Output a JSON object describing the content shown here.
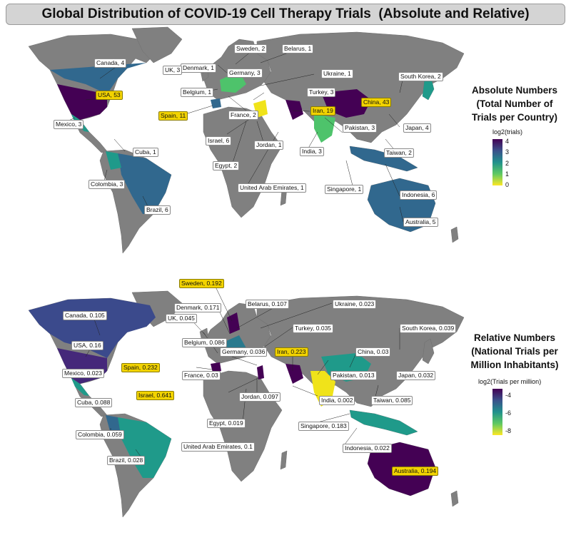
{
  "title": "Global Distribution of COVID-19 Cell Therapy Trials  (Absolute and Relative)",
  "colors": {
    "land": "#808080",
    "ocean": "#ffffff",
    "border": "#6e6e6e",
    "highlight": "#f2d300",
    "scale": [
      "#f0e31a",
      "#4ec36b",
      "#1f9a8a",
      "#31688e",
      "#440154"
    ]
  },
  "panels": [
    {
      "id": "absolute",
      "legend": {
        "title_lines": [
          "Absolute Numbers",
          "(Total Number of",
          "Trials per Country)"
        ],
        "subtitle": "log2(trials)",
        "ticks": [
          "4",
          "3",
          "2",
          "1",
          "0"
        ]
      },
      "labels": [
        {
          "text": "Sweden, 2",
          "hl": false
        },
        {
          "text": "Belarus, 1",
          "hl": false
        },
        {
          "text": "Canada, 4",
          "hl": false
        },
        {
          "text": "Denmark, 1",
          "hl": false
        },
        {
          "text": "UK, 3",
          "hl": false
        },
        {
          "text": "Germany, 3",
          "hl": false
        },
        {
          "text": "Ukraine, 1",
          "hl": false
        },
        {
          "text": "South Korea, 2",
          "hl": false
        },
        {
          "text": "USA, 53",
          "hl": true
        },
        {
          "text": "Belgium, 1",
          "hl": false
        },
        {
          "text": "Turkey, 3",
          "hl": false
        },
        {
          "text": "China, 43",
          "hl": true
        },
        {
          "text": "Spain, 11",
          "hl": true
        },
        {
          "text": "France, 2",
          "hl": false
        },
        {
          "text": "Iran, 19",
          "hl": true
        },
        {
          "text": "Mexico, 3",
          "hl": false
        },
        {
          "text": "Israel, 6",
          "hl": false
        },
        {
          "text": "Pakistan, 3",
          "hl": false
        },
        {
          "text": "Japan, 4",
          "hl": false
        },
        {
          "text": "Cuba, 1",
          "hl": false
        },
        {
          "text": "Jordan, 1",
          "hl": false
        },
        {
          "text": "India, 3",
          "hl": false
        },
        {
          "text": "Taiwan, 2",
          "hl": false
        },
        {
          "text": "Egypt, 2",
          "hl": false
        },
        {
          "text": "Colombia, 3",
          "hl": false
        },
        {
          "text": "United Arab Emirates, 1",
          "hl": false
        },
        {
          "text": "Singapore, 1",
          "hl": false
        },
        {
          "text": "Indonesia, 6",
          "hl": false
        },
        {
          "text": "Brazil, 6",
          "hl": false
        },
        {
          "text": "Australia, 5",
          "hl": false
        }
      ]
    },
    {
      "id": "relative",
      "legend": {
        "title_lines": [
          "Relative Numbers",
          "(National Trials per",
          "Million Inhabitants)"
        ],
        "subtitle": "log2(Trials per million)",
        "ticks": [
          "-4",
          "-6",
          "-8"
        ]
      },
      "labels": [
        {
          "text": "Sweden, 0.192",
          "hl": true
        },
        {
          "text": "Belarus, 0.107",
          "hl": false
        },
        {
          "text": "Denmark, 0.171",
          "hl": false
        },
        {
          "text": "Ukraine, 0.023",
          "hl": false
        },
        {
          "text": "Canada, 0.105",
          "hl": false
        },
        {
          "text": "UK, 0.045",
          "hl": false
        },
        {
          "text": "Turkey, 0.035",
          "hl": false
        },
        {
          "text": "South Korea, 0.039",
          "hl": false
        },
        {
          "text": "Belgium, 0.086",
          "hl": false
        },
        {
          "text": "USA, 0.16",
          "hl": false
        },
        {
          "text": "Germany, 0.036",
          "hl": false
        },
        {
          "text": "Iran, 0.223",
          "hl": true
        },
        {
          "text": "China, 0.03",
          "hl": false
        },
        {
          "text": "Spain, 0.232",
          "hl": true
        },
        {
          "text": "Pakistan, 0.013",
          "hl": false
        },
        {
          "text": "Mexico, 0.023",
          "hl": false
        },
        {
          "text": "France, 0.03",
          "hl": false
        },
        {
          "text": "Japan, 0.032",
          "hl": false
        },
        {
          "text": "Israel, 0.641",
          "hl": true
        },
        {
          "text": "Jordan, 0.097",
          "hl": false
        },
        {
          "text": "India, 0.002",
          "hl": false
        },
        {
          "text": "Taiwan, 0.085",
          "hl": false
        },
        {
          "text": "Cuba, 0.088",
          "hl": false
        },
        {
          "text": "Egypt, 0.019",
          "hl": false
        },
        {
          "text": "Singapore, 0.183",
          "hl": false
        },
        {
          "text": "Colombia, 0.059",
          "hl": false
        },
        {
          "text": "United Arab Emirates, 0.1",
          "hl": false
        },
        {
          "text": "Indonesia, 0.022",
          "hl": false
        },
        {
          "text": "Brazil, 0.028",
          "hl": false
        },
        {
          "text": "Australia, 0.194",
          "hl": true
        }
      ]
    }
  ]
}
